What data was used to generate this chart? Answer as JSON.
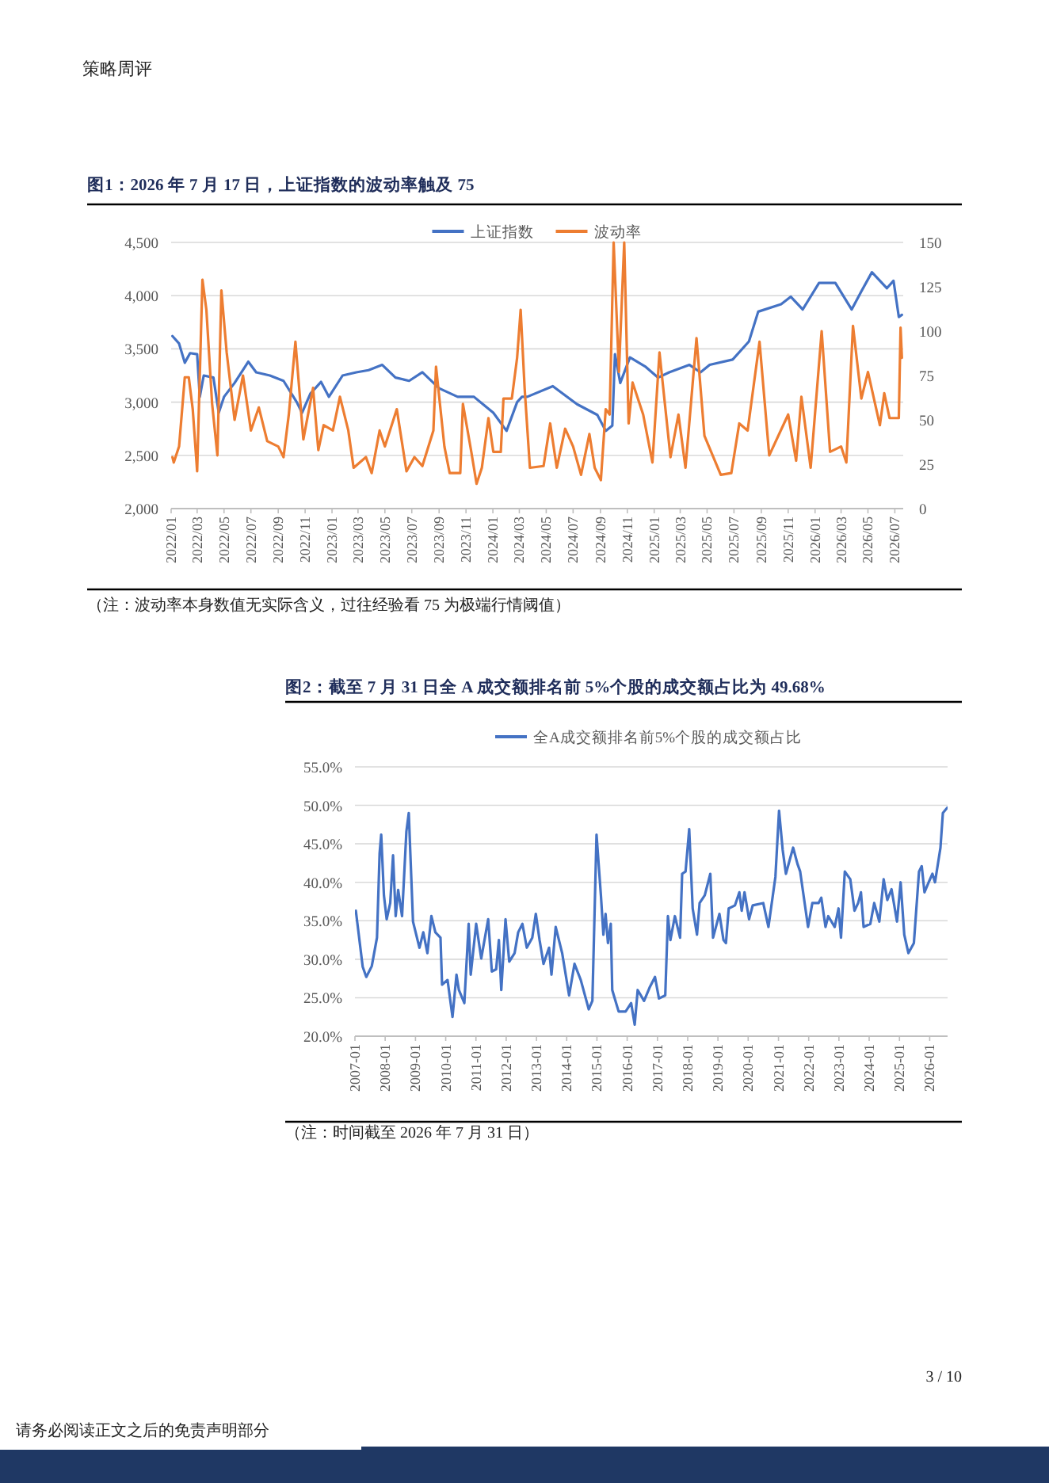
{
  "chart_data": [
    {
      "type": "line",
      "title": "图1：2026 年 7 月 17 日，上证指数的波动率触及 75",
      "annotations": [
        "（注：波动率本身数值无实际含义，过往经验看 75 为极端行情阈值）",
        "策略周评"
      ],
      "legend": "top",
      "grid": "y",
      "xlim": [
        "2022-01-01",
        "2026-07-20"
      ],
      "ylim": [
        2000,
        4500
      ],
      "y2lim": [
        0,
        150
      ],
      "xticks": [
        {
          "value": "2022-01",
          "label": "2022/01"
        },
        {
          "value": "2022-03",
          "label": "2022/03"
        },
        {
          "value": "2022-05",
          "label": "2022/05"
        },
        {
          "value": "2022-07",
          "label": "2022/07"
        },
        {
          "value": "2022-09",
          "label": "2022/09"
        },
        {
          "value": "2022-11",
          "label": "2022/11"
        },
        {
          "value": "2023-01",
          "label": "2023/01"
        },
        {
          "value": "2023-03",
          "label": "2023/03"
        },
        {
          "value": "2023-05",
          "label": "2023/05"
        },
        {
          "value": "2023-07",
          "label": "2023/07"
        },
        {
          "value": "2023-09",
          "label": "2023/09"
        },
        {
          "value": "2023-11",
          "label": "2023/11"
        },
        {
          "value": "2024-01",
          "label": "2024/01"
        },
        {
          "value": "2024-03",
          "label": "2024/03"
        },
        {
          "value": "2024-05",
          "label": "2024/05"
        },
        {
          "value": "2024-07",
          "label": "2024/07"
        },
        {
          "value": "2024-09",
          "label": "2024/09"
        },
        {
          "value": "2024-11",
          "label": "2024/11"
        },
        {
          "value": "2025-01",
          "label": "2025/01"
        },
        {
          "value": "2025-03",
          "label": "2025/03"
        },
        {
          "value": "2025-05",
          "label": "2025/05"
        },
        {
          "value": "2025-07",
          "label": "2025/07"
        },
        {
          "value": "2025-09",
          "label": "2025/09"
        },
        {
          "value": "2025-11",
          "label": "2025/11"
        },
        {
          "value": "2026-01",
          "label": "2026/01"
        },
        {
          "value": "2026-03",
          "label": "2026/03"
        },
        {
          "value": "2026-05",
          "label": "2026/05"
        },
        {
          "value": "2026-07",
          "label": "2026/07"
        }
      ],
      "yticks": [
        {
          "value": 2000,
          "label": "2,000"
        },
        {
          "value": 2500,
          "label": "2,500"
        },
        {
          "value": 3000,
          "label": "3,000"
        },
        {
          "value": 3500,
          "label": "3,500"
        },
        {
          "value": 4000,
          "label": "4,000"
        },
        {
          "value": 4500,
          "label": "4,500"
        }
      ],
      "y2ticks": [
        0,
        25,
        50,
        75,
        100,
        125,
        150
      ],
      "series": [
        {
          "name": "上证指数",
          "color": "#4472c4",
          "x": [
            "2022-01-04",
            "2022-01-19",
            "2022-02-01",
            "2022-02-13",
            "2022-03-01",
            "2022-03-07",
            "2022-03-16",
            "2022-04-07",
            "2022-04-19",
            "2022-05-01",
            "2022-05-25",
            "2022-06-25",
            "2022-07-13",
            "2022-08-13",
            "2022-09-13",
            "2022-10-13",
            "2022-10-25",
            "2022-11-13",
            "2022-12-07",
            "2022-12-25",
            "2023-01-25",
            "2023-02-25",
            "2023-03-25",
            "2023-04-25",
            "2023-05-25",
            "2023-06-25",
            "2023-07-25",
            "2023-09-01",
            "2023-10-13",
            "2023-11-19",
            "2024-01-02",
            "2024-02-01",
            "2024-02-25",
            "2024-03-07",
            "2024-03-19",
            "2024-05-16",
            "2024-07-10",
            "2024-08-25",
            "2024-09-13",
            "2024-09-28",
            "2024-10-04",
            "2024-10-16",
            "2024-11-07",
            "2024-12-13",
            "2025-01-10",
            "2025-02-04",
            "2025-03-22",
            "2025-04-16",
            "2025-05-07",
            "2025-06-28",
            "2025-08-04",
            "2025-08-25",
            "2025-10-16",
            "2025-11-07",
            "2025-12-04",
            "2026-01-10",
            "2026-02-16",
            "2026-03-25",
            "2026-04-16",
            "2026-05-10",
            "2026-06-13",
            "2026-06-28",
            "2026-07-10",
            "2026-07-17"
          ],
          "values": [
            3620,
            3550,
            3370,
            3460,
            3450,
            3050,
            3250,
            3230,
            2900,
            3050,
            3180,
            3380,
            3280,
            3250,
            3200,
            3000,
            2900,
            3080,
            3190,
            3050,
            3250,
            3280,
            3300,
            3350,
            3230,
            3200,
            3280,
            3130,
            3050,
            3050,
            2900,
            2730,
            3000,
            3050,
            3050,
            3150,
            2980,
            2880,
            2730,
            2780,
            3450,
            3180,
            3420,
            3330,
            3230,
            3280,
            3350,
            3280,
            3350,
            3400,
            3570,
            3850,
            3920,
            3990,
            3870,
            4120,
            4120,
            3870,
            4040,
            4220,
            4070,
            4140,
            3800,
            3820
          ]
        },
        {
          "name": "波动率",
          "color": "#ed7d31",
          "axis": "y2",
          "x": [
            "2022-01-04",
            "2022-01-07",
            "2022-01-19",
            "2022-02-01",
            "2022-02-10",
            "2022-02-19",
            "2022-03-01",
            "2022-03-13",
            "2022-03-22",
            "2022-04-04",
            "2022-04-16",
            "2022-04-25",
            "2022-05-07",
            "2022-05-25",
            "2022-06-13",
            "2022-07-01",
            "2022-07-19",
            "2022-08-07",
            "2022-09-01",
            "2022-09-13",
            "2022-09-25",
            "2022-10-10",
            "2022-10-28",
            "2022-11-19",
            "2022-12-01",
            "2022-12-13",
            "2023-01-03",
            "2023-01-19",
            "2023-02-07",
            "2023-02-19",
            "2023-03-19",
            "2023-04-01",
            "2023-04-19",
            "2023-05-01",
            "2023-05-28",
            "2023-06-19",
            "2023-07-07",
            "2023-07-25",
            "2023-08-19",
            "2023-08-25",
            "2023-09-13",
            "2023-09-25",
            "2023-10-19",
            "2023-10-25",
            "2023-11-13",
            "2023-11-25",
            "2023-12-07",
            "2023-12-22",
            "2024-01-02",
            "2024-01-19",
            "2024-01-25",
            "2024-02-13",
            "2024-02-25",
            "2024-03-04",
            "2024-03-13",
            "2024-03-25",
            "2024-04-25",
            "2024-05-10",
            "2024-05-25",
            "2024-06-13",
            "2024-07-01",
            "2024-07-19",
            "2024-08-07",
            "2024-08-19",
            "2024-09-02",
            "2024-09-13",
            "2024-09-22",
            "2024-10-01",
            "2024-10-13",
            "2024-10-25",
            "2024-11-04",
            "2024-11-13",
            "2024-12-07",
            "2024-12-28",
            "2025-01-13",
            "2025-02-07",
            "2025-02-25",
            "2025-03-13",
            "2025-04-07",
            "2025-04-25",
            "2025-06-01",
            "2025-06-25",
            "2025-07-13",
            "2025-08-01",
            "2025-08-28",
            "2025-09-19",
            "2025-11-01",
            "2025-11-19",
            "2025-12-01",
            "2025-12-22",
            "2026-01-16",
            "2026-02-04",
            "2026-03-01",
            "2026-03-13",
            "2026-03-28",
            "2026-04-16",
            "2026-05-01",
            "2026-05-28",
            "2026-06-07",
            "2026-06-19",
            "2026-07-10",
            "2026-07-14",
            "2026-07-17"
          ],
          "values": [
            29,
            26,
            35,
            74,
            74,
            56,
            21,
            129,
            112,
            59,
            30,
            123,
            88,
            50,
            75,
            44,
            57,
            38,
            35,
            29,
            53,
            94,
            39,
            68,
            33,
            47,
            44,
            63,
            44,
            23,
            29,
            20,
            44,
            35,
            56,
            21,
            29,
            24,
            44,
            80,
            35,
            20,
            20,
            59,
            32,
            14,
            23,
            51,
            32,
            32,
            62,
            62,
            85,
            112,
            68,
            23,
            24,
            48,
            23,
            45,
            35,
            19,
            42,
            23,
            16,
            56,
            53,
            150,
            77,
            150,
            48,
            71,
            53,
            26,
            88,
            29,
            53,
            23,
            96,
            41,
            19,
            20,
            48,
            44,
            94,
            30,
            53,
            27,
            63,
            23,
            100,
            32,
            35,
            26,
            103,
            62,
            77,
            47,
            65,
            51,
            51,
            102,
            85
          ]
        }
      ]
    },
    {
      "type": "line",
      "title": "图2：截至 7 月 31 日全 A 成交额排名前 5%个股的成交额占比为 49.68%",
      "annotations": [
        "（注：时间截至 2026 年 7 月 31 日）",
        "请务必阅读正文之后的免责声明部分",
        "3 / 10"
      ],
      "legend": "top",
      "grid": "y",
      "xlim": [
        "2007-01-01",
        "2026-08-05"
      ],
      "ylim": [
        20,
        55
      ],
      "xticks": [
        {
          "value": "2007-01",
          "label": "2007-01"
        },
        {
          "value": "2008-01",
          "label": "2008-01"
        },
        {
          "value": "2009-01",
          "label": "2009-01"
        },
        {
          "value": "2010-01",
          "label": "2010-01"
        },
        {
          "value": "2011-01",
          "label": "2011-01"
        },
        {
          "value": "2012-01",
          "label": "2012-01"
        },
        {
          "value": "2013-01",
          "label": "2013-01"
        },
        {
          "value": "2014-01",
          "label": "2014-01"
        },
        {
          "value": "2015-01",
          "label": "2015-01"
        },
        {
          "value": "2016-01",
          "label": "2016-01"
        },
        {
          "value": "2017-01",
          "label": "2017-01"
        },
        {
          "value": "2018-01",
          "label": "2018-01"
        },
        {
          "value": "2019-01",
          "label": "2019-01"
        },
        {
          "value": "2020-01",
          "label": "2020-01"
        },
        {
          "value": "2021-01",
          "label": "2021-01"
        },
        {
          "value": "2022-01",
          "label": "2022-01"
        },
        {
          "value": "2023-01",
          "label": "2023-01"
        },
        {
          "value": "2024-01",
          "label": "2024-01"
        },
        {
          "value": "2025-01",
          "label": "2025-01"
        },
        {
          "value": "2026-01",
          "label": "2026-01"
        }
      ],
      "yticks": [
        {
          "value": 20,
          "label": "20.0%"
        },
        {
          "value": 25,
          "label": "25.0%"
        },
        {
          "value": 30,
          "label": "30.0%"
        },
        {
          "value": 35,
          "label": "35.0%"
        },
        {
          "value": 40,
          "label": "40.0%"
        },
        {
          "value": 45,
          "label": "45.0%"
        },
        {
          "value": 50,
          "label": "50.0%"
        },
        {
          "value": 55,
          "label": "55.0%"
        }
      ],
      "series": [
        {
          "name": "全A成交额排名前5%个股的成交额占比",
          "color": "#4472c4",
          "x": [
            "2007-01-12",
            "2007-04-05",
            "2007-05-18",
            "2007-07-23",
            "2007-09-24",
            "2007-10-26",
            "2007-11-14",
            "2007-12-17",
            "2008-01-19",
            "2008-03-02",
            "2008-04-05",
            "2008-05-07",
            "2008-06-06",
            "2008-07-23",
            "2008-09-13",
            "2008-10-12",
            "2008-12-02",
            "2009-02-18",
            "2009-04-05",
            "2009-05-25",
            "2009-07-12",
            "2009-08-29",
            "2009-10-30",
            "2009-11-18",
            "2010-01-23",
            "2010-03-24",
            "2010-05-11",
            "2010-06-09",
            "2010-08-14",
            "2010-10-05",
            "2010-10-30",
            "2011-01-04",
            "2011-03-06",
            "2011-05-29",
            "2011-07-12",
            "2011-09-02",
            "2011-10-05",
            "2011-11-03",
            "2011-12-24",
            "2012-02-07",
            "2012-04-12",
            "2012-05-25",
            "2012-07-15",
            "2012-09-06",
            "2012-11-11",
            "2012-12-24",
            "2013-02-07",
            "2013-03-27",
            "2013-06-02",
            "2013-07-01",
            "2013-08-21",
            "2013-11-07",
            "2014-01-30",
            "2014-04-05",
            "2014-06-20",
            "2014-09-24",
            "2014-11-07",
            "2014-12-27",
            "2015-02-18",
            "2015-03-20",
            "2015-04-15",
            "2015-05-14",
            "2015-06-17",
            "2015-07-05",
            "2015-09-20",
            "2015-12-13",
            "2016-02-18",
            "2016-04-01",
            "2016-05-07",
            "2016-07-23",
            "2016-09-27",
            "2016-12-02",
            "2017-01-19",
            "2017-04-05",
            "2017-05-07",
            "2017-06-06",
            "2017-07-30",
            "2017-10-01",
            "2017-10-26",
            "2017-12-06",
            "2018-01-19",
            "2018-03-02",
            "2018-04-23",
            "2018-05-25",
            "2018-07-26",
            "2018-10-01",
            "2018-11-03",
            "2019-01-19",
            "2019-03-09",
            "2019-04-08",
            "2019-05-11",
            "2019-07-26",
            "2019-09-17",
            "2019-10-15",
            "2019-11-18",
            "2020-01-12",
            "2020-02-25",
            "2020-07-01",
            "2020-09-02",
            "2020-11-25",
            "2021-01-08",
            "2021-02-21",
            "2021-04-01",
            "2021-05-14",
            "2021-06-27",
            "2021-08-18",
            "2021-09-20",
            "2021-12-24",
            "2022-02-14",
            "2022-04-30",
            "2022-06-02",
            "2022-07-23",
            "2022-08-25",
            "2022-11-11",
            "2022-12-27",
            "2023-01-26",
            "2023-03-13",
            "2023-05-18",
            "2023-07-08",
            "2023-08-21",
            "2023-09-24",
            "2023-10-26",
            "2024-01-15",
            "2024-03-02",
            "2024-05-03",
            "2024-06-24",
            "2024-08-07",
            "2024-09-27",
            "2024-12-02",
            "2025-01-15",
            "2025-02-28",
            "2025-04-19",
            "2025-06-24",
            "2025-08-25",
            "2025-09-27",
            "2025-10-30",
            "2025-12-20",
            "2026-02-03",
            "2026-03-06",
            "2026-05-11",
            "2026-06-09",
            "2026-07-31"
          ],
          "values": [
            36.3,
            29.0,
            27.7,
            29.1,
            32.8,
            43.8,
            46.2,
            38.3,
            35.2,
            37.3,
            43.5,
            35.6,
            39.0,
            35.6,
            46.6,
            49.0,
            34.9,
            31.5,
            33.5,
            30.8,
            35.6,
            33.5,
            32.8,
            26.7,
            27.3,
            22.5,
            28.0,
            26.0,
            24.3,
            34.6,
            28.0,
            34.6,
            30.1,
            35.2,
            28.4,
            28.7,
            32.5,
            26.0,
            35.2,
            29.7,
            30.8,
            33.5,
            34.6,
            31.5,
            32.8,
            35.9,
            32.5,
            29.4,
            31.5,
            28.0,
            34.2,
            30.8,
            25.3,
            29.4,
            27.3,
            23.5,
            24.6,
            46.2,
            38.3,
            33.2,
            35.9,
            32.1,
            34.6,
            26.0,
            23.2,
            23.2,
            24.3,
            21.5,
            26.0,
            24.6,
            26.3,
            27.7,
            24.9,
            25.3,
            35.6,
            32.5,
            35.6,
            32.8,
            41.1,
            41.4,
            46.9,
            36.6,
            33.2,
            37.3,
            38.3,
            41.1,
            32.8,
            35.9,
            32.5,
            32.1,
            36.6,
            37.0,
            38.7,
            36.3,
            38.7,
            35.2,
            37.0,
            37.3,
            34.2,
            40.7,
            49.3,
            44.2,
            41.1,
            42.8,
            44.5,
            42.4,
            41.4,
            34.2,
            37.3,
            37.3,
            38.0,
            34.2,
            35.6,
            34.2,
            36.6,
            32.8,
            41.4,
            40.4,
            36.3,
            37.3,
            38.7,
            34.2,
            34.6,
            37.3,
            34.9,
            40.4,
            37.7,
            39.1,
            34.9,
            40.0,
            33.2,
            30.8,
            32.1,
            41.4,
            42.1,
            38.7,
            40.0,
            41.1,
            40.0,
            44.5,
            49.0,
            49.68
          ]
        }
      ]
    }
  ]
}
